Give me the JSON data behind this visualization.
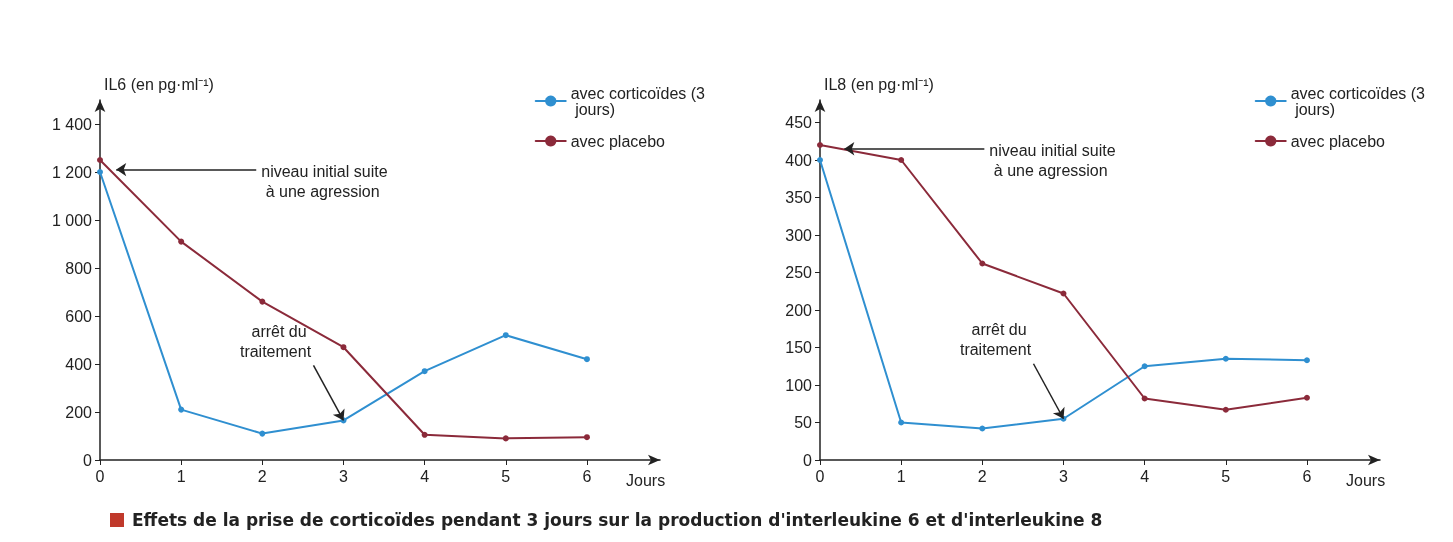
{
  "chart_data": [
    {
      "type": "line",
      "ylabel": "IL6 (en pg·ml⁻¹)",
      "xlabel": "Jours",
      "x": [
        0,
        1,
        2,
        3,
        4,
        5,
        6
      ],
      "series": [
        {
          "name": "avec corticoïdes (3 jours)",
          "color": "#2f8fd0",
          "values": [
            1200,
            210,
            110,
            165,
            370,
            520,
            420
          ]
        },
        {
          "name": "avec placebo",
          "color": "#8b2a3a",
          "values": [
            1250,
            910,
            660,
            470,
            105,
            90,
            95
          ]
        }
      ],
      "xlim": [
        0,
        6.9
      ],
      "xticks": [
        0,
        1,
        2,
        3,
        4,
        5,
        6
      ],
      "ylim": [
        0,
        1500
      ],
      "yticks": [
        0,
        200,
        400,
        600,
        800,
        {
          "value": 1000,
          "label": "1 000"
        },
        {
          "value": 1200,
          "label": "1 200"
        },
        {
          "value": 1400,
          "label": "1 400"
        }
      ],
      "marker": "circle",
      "line_style": "solid",
      "grid": false,
      "legend": "top right",
      "annotations": [
        {
          "text": "niveau initial suite à une agression",
          "x": 0.2,
          "y": 1210
        },
        {
          "text": "arrêt du traitement",
          "x": 3,
          "y": 165
        },
        "Effets de la prise de corticoïdes pendant 3 jours sur la production d'interleukine 6 et d'interleukine 8"
      ]
    },
    {
      "type": "line",
      "ylabel": "IL8 (en pg·ml⁻¹)",
      "xlabel": "Jours",
      "x": [
        0,
        1,
        2,
        3,
        4,
        5,
        6
      ],
      "series": [
        {
          "name": "avec corticoïdes (3 jours)",
          "color": "#2f8fd0",
          "values": [
            400,
            50,
            42,
            55,
            125,
            135,
            133
          ]
        },
        {
          "name": "avec placebo",
          "color": "#8b2a3a",
          "values": [
            420,
            400,
            262,
            222,
            82,
            67,
            83
          ]
        }
      ],
      "xlim": [
        0,
        6.9
      ],
      "xticks": [
        0,
        1,
        2,
        3,
        4,
        5,
        6
      ],
      "ylim": [
        0,
        480
      ],
      "yticks": [
        0,
        50,
        100,
        150,
        200,
        250,
        300,
        350,
        400,
        450
      ],
      "marker": "circle",
      "line_style": "solid",
      "grid": false,
      "legend": "top right",
      "annotations": [
        {
          "text": "niveau initial suite à une agression",
          "x": 0.3,
          "y": 415
        },
        {
          "text": "arrêt du traitement",
          "x": 3,
          "y": 55
        }
      ]
    }
  ]
}
